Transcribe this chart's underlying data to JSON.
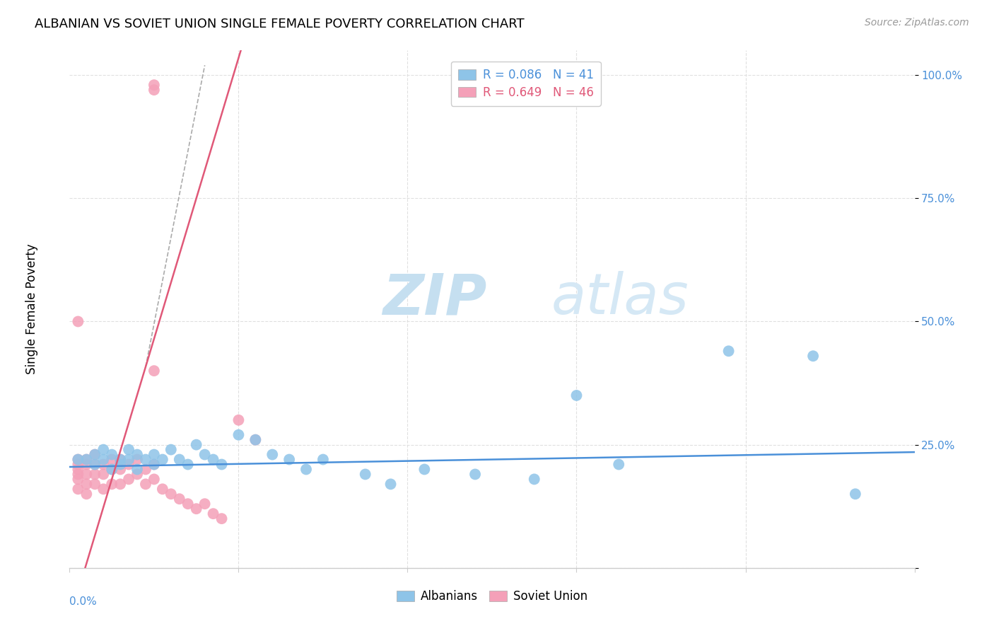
{
  "title": "ALBANIAN VS SOVIET UNION SINGLE FEMALE POVERTY CORRELATION CHART",
  "source": "Source: ZipAtlas.com",
  "ylabel": "Single Female Poverty",
  "xlim": [
    0.0,
    0.1
  ],
  "ylim": [
    0.0,
    1.05
  ],
  "albanian_R": 0.086,
  "albanian_N": 41,
  "soviet_R": 0.649,
  "soviet_N": 46,
  "albanian_color": "#8ec4e8",
  "soviet_color": "#f4a0b8",
  "albanian_line_color": "#4a90d9",
  "soviet_line_color": "#e05878",
  "watermark_zip_color": "#c8dff0",
  "watermark_atlas_color": "#d8e8f5",
  "albanian_x": [
    0.001,
    0.002,
    0.003,
    0.003,
    0.004,
    0.004,
    0.005,
    0.005,
    0.006,
    0.006,
    0.007,
    0.007,
    0.008,
    0.008,
    0.009,
    0.01,
    0.01,
    0.011,
    0.012,
    0.013,
    0.014,
    0.015,
    0.016,
    0.017,
    0.018,
    0.02,
    0.022,
    0.024,
    0.026,
    0.028,
    0.03,
    0.035,
    0.038,
    0.042,
    0.048,
    0.055,
    0.06,
    0.065,
    0.078,
    0.088,
    0.093
  ],
  "albanian_y": [
    0.22,
    0.22,
    0.21,
    0.23,
    0.22,
    0.24,
    0.2,
    0.23,
    0.22,
    0.21,
    0.24,
    0.22,
    0.23,
    0.2,
    0.22,
    0.21,
    0.23,
    0.22,
    0.24,
    0.22,
    0.21,
    0.25,
    0.23,
    0.22,
    0.21,
    0.27,
    0.26,
    0.23,
    0.22,
    0.2,
    0.22,
    0.19,
    0.17,
    0.2,
    0.19,
    0.18,
    0.35,
    0.21,
    0.44,
    0.43,
    0.15
  ],
  "soviet_x": [
    0.001,
    0.001,
    0.001,
    0.001,
    0.001,
    0.001,
    0.002,
    0.002,
    0.002,
    0.002,
    0.002,
    0.003,
    0.003,
    0.003,
    0.003,
    0.004,
    0.004,
    0.004,
    0.005,
    0.005,
    0.005,
    0.006,
    0.006,
    0.006,
    0.007,
    0.007,
    0.008,
    0.008,
    0.009,
    0.009,
    0.01,
    0.01,
    0.011,
    0.012,
    0.013,
    0.014,
    0.015,
    0.016,
    0.017,
    0.018,
    0.02,
    0.022,
    0.01,
    0.01,
    0.01,
    0.001
  ],
  "soviet_y": [
    0.22,
    0.21,
    0.2,
    0.19,
    0.18,
    0.16,
    0.22,
    0.21,
    0.19,
    0.17,
    0.15,
    0.23,
    0.21,
    0.19,
    0.17,
    0.21,
    0.19,
    0.16,
    0.22,
    0.2,
    0.17,
    0.22,
    0.2,
    0.17,
    0.21,
    0.18,
    0.22,
    0.19,
    0.2,
    0.17,
    0.21,
    0.18,
    0.16,
    0.15,
    0.14,
    0.13,
    0.12,
    0.13,
    0.11,
    0.1,
    0.3,
    0.26,
    0.97,
    0.98,
    0.4,
    0.5
  ],
  "ytick_values": [
    0.0,
    0.25,
    0.5,
    0.75,
    1.0
  ],
  "ytick_labels": [
    "",
    "25.0%",
    "50.0%",
    "75.0%",
    "100.0%"
  ],
  "xtick_values": [
    0.0,
    0.02,
    0.04,
    0.06,
    0.08,
    0.1
  ],
  "grid_color": "#e0e0e0",
  "spine_color": "#cccccc"
}
